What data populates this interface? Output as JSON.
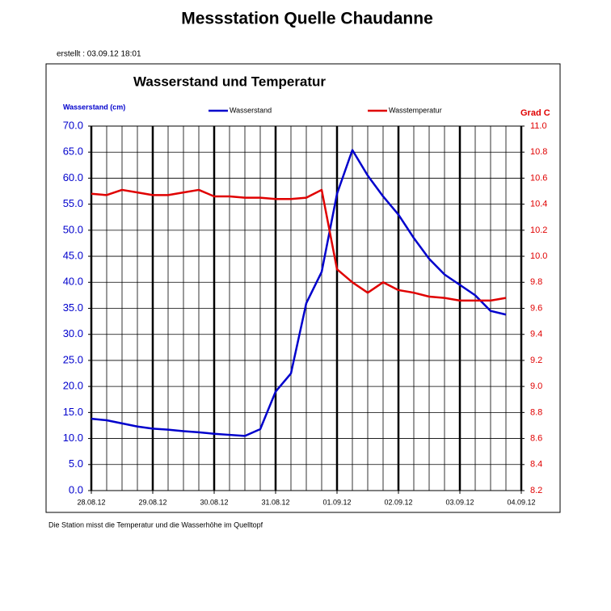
{
  "title": "Messstation Quelle Chaudanne",
  "created": "erstellt :  03.09.12 18:01",
  "footer": "Die Station misst die Temperatur und die  Wasserhöhe im Quelltopf",
  "chart_data": {
    "type": "line",
    "title": "Wasserstand und Temperatur",
    "ylabel": "Wasserstand (cm)",
    "y2label": "Grad C",
    "x": [
      "2012-08-28T00:00",
      "2012-08-28T06:00",
      "2012-08-28T12:00",
      "2012-08-28T18:00",
      "2012-08-29T00:00",
      "2012-08-29T06:00",
      "2012-08-29T12:00",
      "2012-08-29T18:00",
      "2012-08-30T00:00",
      "2012-08-30T06:00",
      "2012-08-30T12:00",
      "2012-08-30T18:00",
      "2012-08-31T00:00",
      "2012-08-31T06:00",
      "2012-08-31T12:00",
      "2012-08-31T18:00",
      "2012-09-01T00:00",
      "2012-09-01T06:00",
      "2012-09-01T12:00",
      "2012-09-01T18:00",
      "2012-09-02T00:00",
      "2012-09-02T06:00",
      "2012-09-02T12:00",
      "2012-09-02T18:00",
      "2012-09-03T00:00",
      "2012-09-03T06:00",
      "2012-09-03T12:00",
      "2012-09-03T18:00"
    ],
    "xlim": [
      "2012-08-28T00:00",
      "2012-09-04T00:00"
    ],
    "xticks": [
      {
        "value": "2012-08-28T00:00",
        "label": "28.08.12"
      },
      {
        "value": "2012-08-29T00:00",
        "label": "29.08.12"
      },
      {
        "value": "2012-08-30T00:00",
        "label": "30.08.12"
      },
      {
        "value": "2012-08-31T00:00",
        "label": "31.08.12"
      },
      {
        "value": "2012-09-01T00:00",
        "label": "01.09.12"
      },
      {
        "value": "2012-09-02T00:00",
        "label": "02.09.12"
      },
      {
        "value": "2012-09-03T00:00",
        "label": "03.09.12"
      },
      {
        "value": "2012-09-04T00:00",
        "label": "04.09.12"
      }
    ],
    "x_minor_grid_hours": 6,
    "series": [
      {
        "name": "Wasserstand",
        "color": "#0000cc",
        "axis": "y",
        "values": [
          13.8,
          13.5,
          12.9,
          12.3,
          11.9,
          11.7,
          11.4,
          11.2,
          10.9,
          10.7,
          10.5,
          11.8,
          19,
          22.5,
          36,
          42,
          57,
          65.4,
          60.5,
          56.5,
          53,
          48.5,
          44.5,
          41.5,
          39.5,
          37.5,
          34.5,
          33.8
        ]
      },
      {
        "name": "Wasstemperatur",
        "color": "#e00000",
        "axis": "y2",
        "values": [
          10.48,
          10.47,
          10.51,
          10.49,
          10.47,
          10.47,
          10.49,
          10.51,
          10.46,
          10.46,
          10.45,
          10.45,
          10.44,
          10.44,
          10.45,
          10.51,
          9.9,
          9.8,
          9.72,
          9.8,
          9.74,
          9.72,
          9.69,
          9.68,
          9.66,
          9.66,
          9.66,
          9.68
        ]
      }
    ],
    "ylim": [
      0,
      70
    ],
    "yticks": [
      {
        "value": 0,
        "label": "0.0"
      },
      {
        "value": 5,
        "label": "5.0"
      },
      {
        "value": 10,
        "label": "10.0"
      },
      {
        "value": 15,
        "label": "15.0"
      },
      {
        "value": 20,
        "label": "20.0"
      },
      {
        "value": 25,
        "label": "25.0"
      },
      {
        "value": 30,
        "label": "30.0"
      },
      {
        "value": 35,
        "label": "35.0"
      },
      {
        "value": 40,
        "label": "40.0"
      },
      {
        "value": 45,
        "label": "45.0"
      },
      {
        "value": 50,
        "label": "50.0"
      },
      {
        "value": 55,
        "label": "55.0"
      },
      {
        "value": 60,
        "label": "60.0"
      },
      {
        "value": 65,
        "label": "65.0"
      },
      {
        "value": 70,
        "label": "70.0"
      }
    ],
    "y2lim": [
      8.2,
      11.0
    ],
    "y2ticks": [
      8.2,
      8.4,
      8.6,
      8.8,
      {
        "value": 9,
        "label": "9.0"
      },
      9.2,
      9.4,
      9.6,
      9.8,
      {
        "value": 10,
        "label": "10.0"
      },
      10.2,
      10.4,
      10.6,
      10.8,
      {
        "value": 11,
        "label": "11.0"
      }
    ],
    "grid": true
  }
}
